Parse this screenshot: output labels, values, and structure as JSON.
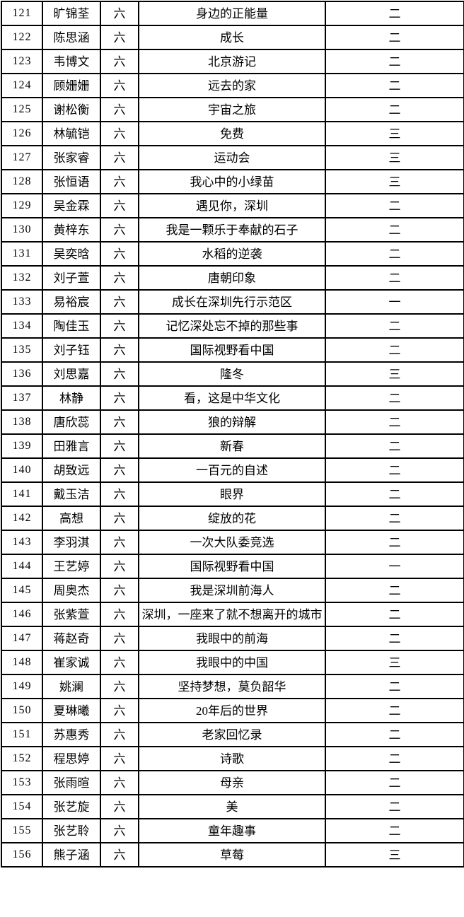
{
  "page": {
    "background_color": "#ffffff",
    "border_color": "#000000",
    "text_color": "#000000"
  },
  "table": {
    "rows": [
      {
        "no": "121",
        "name": "旷锦荃",
        "grade": "六",
        "title": "身边的正能量",
        "award": "二"
      },
      {
        "no": "122",
        "name": "陈思涵",
        "grade": "六",
        "title": "成长",
        "award": "二"
      },
      {
        "no": "123",
        "name": "韦博文",
        "grade": "六",
        "title": "北京游记",
        "award": "二"
      },
      {
        "no": "124",
        "name": "顾姗姗",
        "grade": "六",
        "title": "远去的家",
        "award": "二"
      },
      {
        "no": "125",
        "name": "谢松衡",
        "grade": "六",
        "title": "宇宙之旅",
        "award": "二"
      },
      {
        "no": "126",
        "name": "林毓铠",
        "grade": "六",
        "title": "免费",
        "award": "三"
      },
      {
        "no": "127",
        "name": "张家睿",
        "grade": "六",
        "title": "运动会",
        "award": "三"
      },
      {
        "no": "128",
        "name": "张恒语",
        "grade": "六",
        "title": "我心中的小绿苗",
        "award": "三"
      },
      {
        "no": "129",
        "name": "吴金霖",
        "grade": "六",
        "title": "遇见你，深圳",
        "award": "二"
      },
      {
        "no": "130",
        "name": "黄梓东",
        "grade": "六",
        "title": "我是一颗乐于奉献的石子",
        "award": "二"
      },
      {
        "no": "131",
        "name": "吴奕晗",
        "grade": "六",
        "title": "水稻的逆袭",
        "award": "二"
      },
      {
        "no": "132",
        "name": "刘子萱",
        "grade": "六",
        "title": "唐朝印象",
        "award": "二"
      },
      {
        "no": "133",
        "name": "易裕宸",
        "grade": "六",
        "title": "成长在深圳先行示范区",
        "award": "一"
      },
      {
        "no": "134",
        "name": "陶佳玉",
        "grade": "六",
        "title": "记忆深处忘不掉的那些事",
        "award": "二"
      },
      {
        "no": "135",
        "name": "刘子钰",
        "grade": "六",
        "title": "国际视野看中国",
        "award": "二"
      },
      {
        "no": "136",
        "name": "刘思嘉",
        "grade": "六",
        "title": "隆冬",
        "award": "三"
      },
      {
        "no": "137",
        "name": "林静",
        "grade": "六",
        "title": "看，这是中华文化",
        "award": "二"
      },
      {
        "no": "138",
        "name": "唐欣蕊",
        "grade": "六",
        "title": "狼的辩解",
        "award": "二"
      },
      {
        "no": "139",
        "name": "田雅言",
        "grade": "六",
        "title": "新春",
        "award": "二"
      },
      {
        "no": "140",
        "name": "胡致远",
        "grade": "六",
        "title": "一百元的自述",
        "award": "二"
      },
      {
        "no": "141",
        "name": "戴玉洁",
        "grade": "六",
        "title": "眼界",
        "award": "二"
      },
      {
        "no": "142",
        "name": "高想",
        "grade": "六",
        "title": "绽放的花",
        "award": "二"
      },
      {
        "no": "143",
        "name": "李羽淇",
        "grade": "六",
        "title": "一次大队委竞选",
        "award": "二"
      },
      {
        "no": "144",
        "name": "王艺婷",
        "grade": "六",
        "title": "国际视野看中国",
        "award": "一"
      },
      {
        "no": "145",
        "name": "周奥杰",
        "grade": "六",
        "title": "我是深圳前海人",
        "award": "二"
      },
      {
        "no": "146",
        "name": "张紫萱",
        "grade": "六",
        "title": "深圳，一座来了就不想离开的城市",
        "award": "二"
      },
      {
        "no": "147",
        "name": "蒋赵奇",
        "grade": "六",
        "title": "我眼中的前海",
        "award": "二"
      },
      {
        "no": "148",
        "name": "崔家诚",
        "grade": "六",
        "title": "我眼中的中国",
        "award": "三"
      },
      {
        "no": "149",
        "name": "姚澜",
        "grade": "六",
        "title": "坚持梦想，莫负韶华",
        "award": "二"
      },
      {
        "no": "150",
        "name": "夏琳曦",
        "grade": "六",
        "title": "20年后的世界",
        "award": "二"
      },
      {
        "no": "151",
        "name": "苏惠秀",
        "grade": "六",
        "title": "老家回忆录",
        "award": "二"
      },
      {
        "no": "152",
        "name": "程思婷",
        "grade": "六",
        "title": "诗歌",
        "award": "二"
      },
      {
        "no": "153",
        "name": "张雨暄",
        "grade": "六",
        "title": "母亲",
        "award": "二"
      },
      {
        "no": "154",
        "name": "张艺旋",
        "grade": "六",
        "title": "美",
        "award": "二"
      },
      {
        "no": "155",
        "name": "张艺聆",
        "grade": "六",
        "title": "童年趣事",
        "award": "二"
      },
      {
        "no": "156",
        "name": "熊子涵",
        "grade": "六",
        "title": "草莓",
        "award": "三"
      }
    ]
  }
}
